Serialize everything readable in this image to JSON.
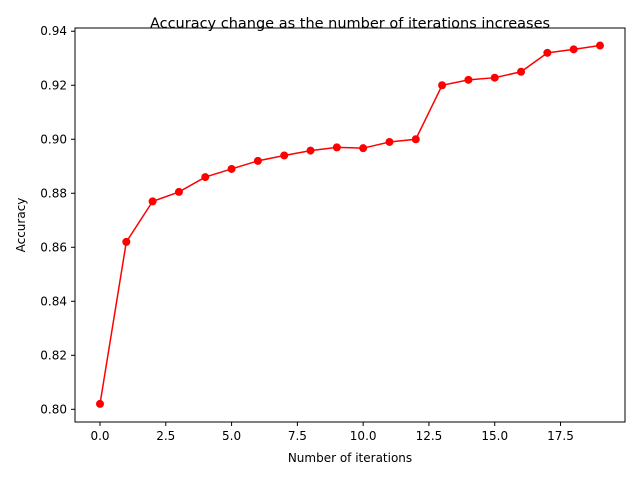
{
  "chart_data": {
    "type": "line",
    "title": "Accuracy change as the number of iterations increases",
    "xlabel": "Number of iterations",
    "ylabel": "Accuracy",
    "xlim": [
      -0.95,
      19.95
    ],
    "ylim": [
      0.7953,
      0.9412
    ],
    "x_ticks": [
      0.0,
      2.5,
      5.0,
      7.5,
      10.0,
      12.5,
      15.0,
      17.5
    ],
    "x_tick_labels": [
      "0.0",
      "2.5",
      "5.0",
      "7.5",
      "10.0",
      "12.5",
      "15.0",
      "17.5"
    ],
    "y_ticks": [
      0.8,
      0.82,
      0.84,
      0.86,
      0.88,
      0.9,
      0.92,
      0.94
    ],
    "y_tick_labels": [
      "0.80",
      "0.82",
      "0.84",
      "0.86",
      "0.88",
      "0.90",
      "0.92",
      "0.94"
    ],
    "grid": false,
    "series": [
      {
        "color": "#ff0000",
        "marker": "circle",
        "x": [
          0,
          1,
          2,
          3,
          4,
          5,
          6,
          7,
          8,
          9,
          10,
          11,
          12,
          13,
          14,
          15,
          16,
          17,
          18,
          19
        ],
        "y": [
          0.802,
          0.862,
          0.877,
          0.8805,
          0.886,
          0.889,
          0.892,
          0.894,
          0.8958,
          0.897,
          0.8967,
          0.899,
          0.9,
          0.92,
          0.922,
          0.9228,
          0.925,
          0.932,
          0.9333,
          0.9347
        ]
      }
    ]
  }
}
